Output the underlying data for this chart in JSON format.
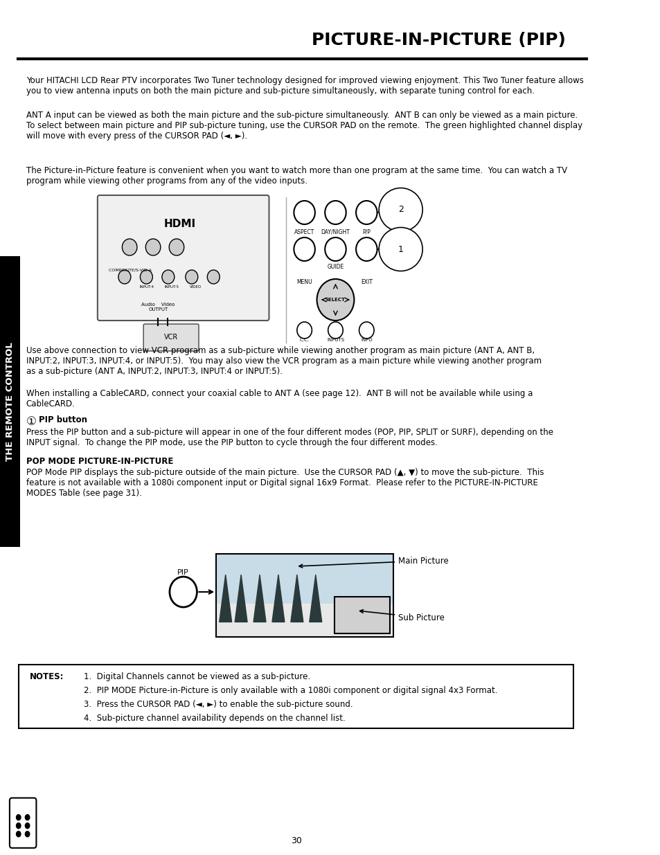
{
  "title": "PICTURE-IN-PICTURE (PIP)",
  "page_number": "30",
  "bg_color": "#ffffff",
  "text_color": "#000000",
  "sidebar_text": "THE REMOTE CONTROL",
  "sidebar_bg": "#000000",
  "sidebar_text_color": "#ffffff",
  "para1": "Your HITACHI LCD Rear PTV incorporates Two Tuner technology designed for improved viewing enjoyment. This Two Tuner feature allows\nyou to view antenna inputs on both the main picture and sub-picture simultaneously, with separate tuning control for each.",
  "para2": "ANT A input can be viewed as both the main picture and the sub-picture simultaneously.  ANT B can only be viewed as a main picture.\nTo select between main picture and PIP sub-picture tuning, use the CURSOR PAD on the remote.  The green highlighted channel display\nwill move with every press of the CURSOR PAD (◄, ►).",
  "para3": "The Picture-in-Picture feature is convenient when you want to watch more than one program at the same time.  You can watch a TV\nprogram while viewing other programs from any of the video inputs.",
  "use_text": "Use above connection to view VCR program as a sub-picture while viewing another program as main picture (ANT A, ANT B,\nINPUT:2, INPUT:3, INPUT:4, or INPUT:5).  You may also view the VCR program as a main picture while viewing another program\nas a sub-picture (ANT A, INPUT:2, INPUT:3, INPUT:4 or INPUT:5).",
  "cable_text": "When installing a CableCARD, connect your coaxial cable to ANT A (see page 12).  ANT B will not be available while using a\nCableCARD.",
  "pip_button_title": "PIP button",
  "pip_button_text": "Press the PIP button and a sub-picture will appear in one of the four different modes (POP, PIP, SPLIT or SURF), depending on the\nINPUT signal.  To change the PIP mode, use the PIP button to cycle through the four different modes.",
  "pop_mode_title": "POP MODE PICTURE-IN-PICTURE",
  "pop_mode_text": "POP Mode PIP displays the sub-picture outside of the main picture.  Use the CURSOR PAD (▲, ▼) to move the sub-picture.  This\nfeature is not available with a 1080i component input or Digital signal 16x9 Format.  Please refer to the PICTURE-IN-PICTURE\nMODES Table (see page 31).",
  "notes_title": "NOTES:",
  "notes": [
    "1.  Digital Channels cannot be viewed as a sub-picture.",
    "2.  PIP MODE Picture-in-Picture is only available with a 1080i component or digital signal 4x3 Format.",
    "3.  Press the CURSOR PAD (◄, ►) to enable the sub-picture sound.",
    "4.  Sub-picture channel availability depends on the channel list."
  ],
  "main_picture_label": "Main Picture",
  "sub_picture_label": "Sub Picture",
  "pip_label": "PIP",
  "circle_1": "1",
  "circle_2": "2"
}
